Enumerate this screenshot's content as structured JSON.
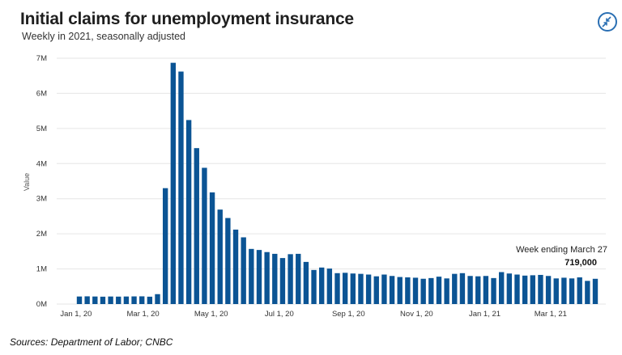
{
  "header": {
    "title": "Initial claims for unemployment insurance",
    "subtitle": "Weekly in 2021, seasonally adjusted"
  },
  "footer": {
    "source": "Sources:  Department of Labor; CNBC"
  },
  "icons": {
    "collapse": "collapse-arrows-icon"
  },
  "colors": {
    "bar": "#0b5494",
    "grid": "#e6e6e6",
    "accent": "#2a6fb3"
  },
  "chart_data": {
    "type": "bar",
    "title": "Initial claims for unemployment insurance",
    "subtitle": "Weekly in 2021, seasonally adjusted",
    "xlabel": "",
    "ylabel": "Value",
    "ylim": [
      0,
      7000000
    ],
    "yticks": [
      0,
      1000000,
      2000000,
      3000000,
      4000000,
      5000000,
      6000000,
      7000000
    ],
    "ytick_labels": [
      "0M",
      "1M",
      "2M",
      "3M",
      "4M",
      "5M",
      "6M",
      "7M"
    ],
    "xtick_labels": [
      "Jan 1, 20",
      "Mar 1, 20",
      "May 1, 20",
      "Jul 1, 20",
      "Sep 1, 20",
      "Nov 1, 20",
      "Jan 1, 21",
      "Mar 1, 21"
    ],
    "xtick_dates": [
      "2020-01-01",
      "2020-03-01",
      "2020-05-01",
      "2020-07-01",
      "2020-09-01",
      "2020-11-01",
      "2021-01-01",
      "2021-03-01"
    ],
    "x_start": "2020-01-04",
    "x_step": "weekly",
    "grid": true,
    "values": [
      215000,
      220000,
      215000,
      210000,
      215000,
      212000,
      215000,
      218000,
      220000,
      210000,
      282000,
      3300000,
      6870000,
      6620000,
      5240000,
      4440000,
      3880000,
      3180000,
      2690000,
      2450000,
      2120000,
      1900000,
      1570000,
      1540000,
      1480000,
      1430000,
      1310000,
      1420000,
      1430000,
      1200000,
      970000,
      1040000,
      1010000,
      880000,
      890000,
      870000,
      860000,
      840000,
      790000,
      840000,
      800000,
      770000,
      760000,
      750000,
      720000,
      740000,
      780000,
      730000,
      860000,
      880000,
      800000,
      790000,
      800000,
      740000,
      910000,
      870000,
      840000,
      810000,
      820000,
      830000,
      800000,
      730000,
      750000,
      730000,
      760000,
      660000,
      719000
    ],
    "annotation": {
      "label": "Week ending March 27",
      "value_label": "719,000",
      "value": 719000
    }
  }
}
